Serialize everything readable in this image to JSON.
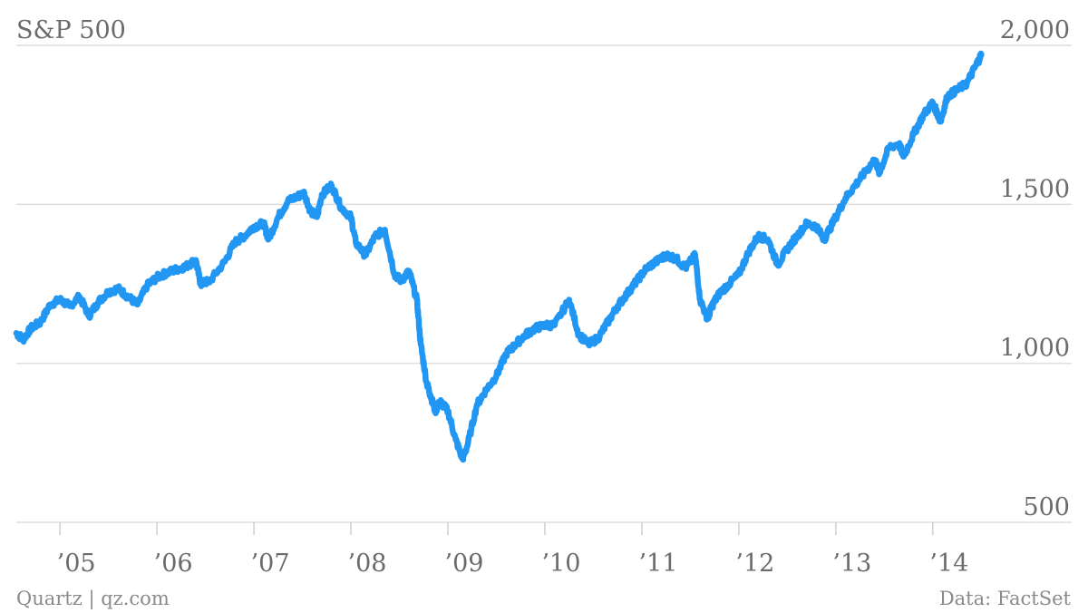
{
  "chart_data": {
    "type": "line",
    "title": "S&P 500",
    "xlabel": "",
    "ylabel": "",
    "ylim": [
      500,
      2000
    ],
    "xlim": [
      2004.55,
      2014.6
    ],
    "y_ticks": [
      500,
      1000,
      1500,
      2000
    ],
    "y_tick_labels": [
      "500",
      "1,000",
      "1,500",
      "2,000"
    ],
    "x_ticks": [
      2005,
      2006,
      2007,
      2008,
      2009,
      2010,
      2011,
      2012,
      2013,
      2014
    ],
    "x_tick_labels": [
      "’05",
      "’06",
      "’07",
      "’08",
      "’09",
      "’10",
      "’11",
      "’12",
      "’13",
      "’14"
    ],
    "y_axis_position": "right",
    "grid": "horizontal",
    "legend": "none",
    "source": "Data: FactSet",
    "credit": "Quartz | qz.com",
    "color": "#2196f3",
    "series": [
      {
        "x": [
          2004.55,
          2004.62,
          2004.7,
          2004.8,
          2004.9,
          2005.0,
          2005.1,
          2005.2,
          2005.3,
          2005.4,
          2005.5,
          2005.6,
          2005.7,
          2005.8,
          2005.9,
          2006.0,
          2006.1,
          2006.2,
          2006.3,
          2006.4,
          2006.45,
          2006.55,
          2006.7,
          2006.8,
          2006.9,
          2007.0,
          2007.1,
          2007.15,
          2007.25,
          2007.35,
          2007.45,
          2007.52,
          2007.58,
          2007.65,
          2007.7,
          2007.8,
          2007.9,
          2008.0,
          2008.05,
          2008.15,
          2008.25,
          2008.35,
          2008.45,
          2008.52,
          2008.6,
          2008.68,
          2008.72,
          2008.78,
          2008.82,
          2008.87,
          2008.92,
          2009.0,
          2009.08,
          2009.15,
          2009.2,
          2009.3,
          2009.4,
          2009.5,
          2009.6,
          2009.7,
          2009.8,
          2009.9,
          2010.0,
          2010.1,
          2010.25,
          2010.35,
          2010.45,
          2010.55,
          2010.65,
          2010.75,
          2010.85,
          2010.95,
          2011.05,
          2011.15,
          2011.25,
          2011.35,
          2011.45,
          2011.55,
          2011.6,
          2011.68,
          2011.72,
          2011.8,
          2011.9,
          2012.0,
          2012.1,
          2012.2,
          2012.3,
          2012.4,
          2012.5,
          2012.6,
          2012.7,
          2012.8,
          2012.88,
          2013.0,
          2013.1,
          2013.2,
          2013.3,
          2013.4,
          2013.45,
          2013.55,
          2013.65,
          2013.7,
          2013.8,
          2013.9,
          2014.0,
          2014.08,
          2014.15,
          2014.25,
          2014.35,
          2014.45,
          2014.5
        ],
        "y": [
          1095,
          1075,
          1110,
          1130,
          1185,
          1200,
          1180,
          1210,
          1150,
          1195,
          1225,
          1235,
          1210,
          1185,
          1245,
          1270,
          1285,
          1295,
          1305,
          1325,
          1250,
          1260,
          1320,
          1380,
          1400,
          1430,
          1440,
          1390,
          1460,
          1510,
          1525,
          1535,
          1480,
          1460,
          1530,
          1560,
          1490,
          1460,
          1380,
          1340,
          1400,
          1420,
          1280,
          1260,
          1290,
          1200,
          1060,
          940,
          900,
          850,
          880,
          850,
          760,
          700,
          740,
          870,
          920,
          960,
          1030,
          1060,
          1090,
          1110,
          1120,
          1120,
          1200,
          1090,
          1060,
          1080,
          1130,
          1180,
          1220,
          1260,
          1300,
          1320,
          1340,
          1330,
          1300,
          1340,
          1200,
          1140,
          1180,
          1220,
          1250,
          1280,
          1350,
          1400,
          1390,
          1310,
          1360,
          1400,
          1440,
          1430,
          1390,
          1460,
          1520,
          1560,
          1600,
          1640,
          1600,
          1680,
          1690,
          1650,
          1720,
          1780,
          1820,
          1760,
          1840,
          1860,
          1880,
          1940,
          1970
        ]
      }
    ]
  }
}
